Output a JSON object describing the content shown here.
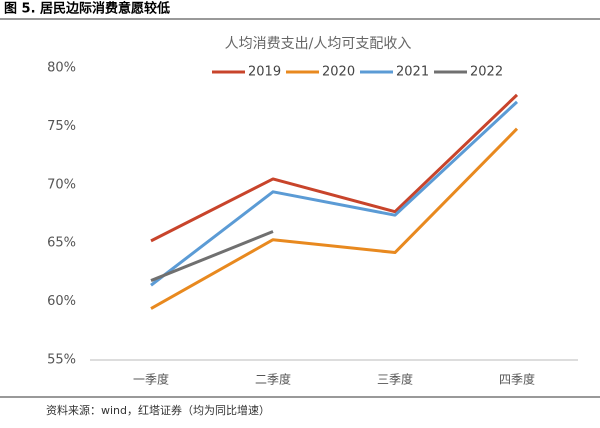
{
  "figure_title": "图 5. 居民边际消费意愿较低",
  "source": "资料来源：wind，红塔证券（均为同比增速）",
  "chart_data": {
    "type": "line",
    "title": "人均消费支出/人均可支配收入",
    "categories": [
      "一季度",
      "二季度",
      "三季度",
      "四季度"
    ],
    "series": [
      {
        "name": "2019",
        "color": "#c8442b",
        "values": [
          65.2,
          70.5,
          67.7,
          77.7
        ]
      },
      {
        "name": "2020",
        "color": "#e8891f",
        "values": [
          59.4,
          65.3,
          64.2,
          74.8
        ]
      },
      {
        "name": "2021",
        "color": "#5b9bd5",
        "values": [
          61.4,
          69.4,
          67.4,
          77.1
        ]
      },
      {
        "name": "2022",
        "color": "#707070",
        "values": [
          61.8,
          66.0,
          null,
          null
        ]
      }
    ],
    "ylim": [
      55,
      80
    ],
    "yticks": [
      {
        "value": 55,
        "label": "55%"
      },
      {
        "value": 60,
        "label": "60%"
      },
      {
        "value": 65,
        "label": "65%"
      },
      {
        "value": 70,
        "label": "70%"
      },
      {
        "value": 75,
        "label": "75%"
      },
      {
        "value": 80,
        "label": "80%"
      }
    ],
    "grid": false,
    "legend": "top"
  }
}
